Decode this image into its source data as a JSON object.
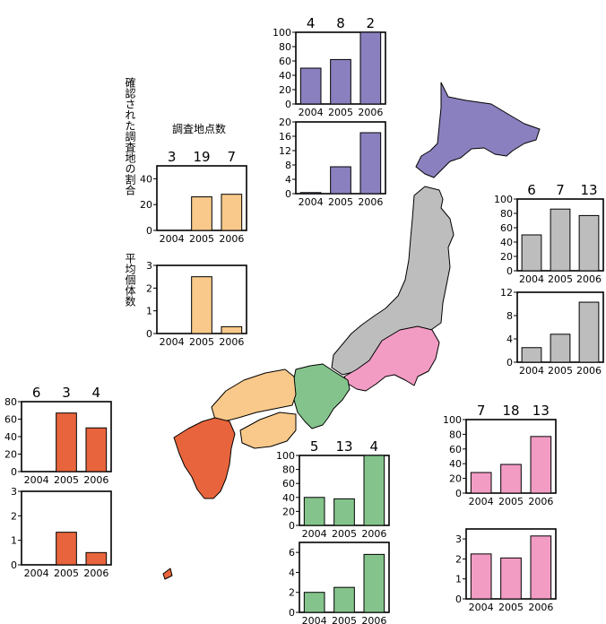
{
  "legend_labels": {
    "survey_points_title": "調査地点数",
    "proportion_label": "確認された調査地の割合",
    "avg_label": "平均個体数"
  },
  "colors": {
    "hokkaido": "#8b80bf",
    "tohoku": "#bdbdbd",
    "kanto": "#f29cc4",
    "chubu_kinki": "#84c48c",
    "chugoku_shikoku": "#f8c98a",
    "kyushu": "#e8643c"
  },
  "chart_data": [
    {
      "id": "legend-prop",
      "type": "bar",
      "categories": [
        "2004",
        "2005",
        "2006"
      ],
      "values": [
        0,
        26,
        28
      ],
      "counts": [
        "3",
        "19",
        "7"
      ],
      "ylim": [
        0,
        50
      ],
      "yticks": [
        "0",
        "20",
        "40"
      ],
      "color": "#f8c98a"
    },
    {
      "id": "legend-avg",
      "type": "bar",
      "categories": [
        "2004",
        "2005",
        "2006"
      ],
      "values": [
        0,
        2.5,
        0.3
      ],
      "ylim": [
        0,
        3
      ],
      "yticks": [
        "0",
        "1",
        "2",
        "3"
      ],
      "color": "#f8c98a"
    },
    {
      "id": "hokkaido-prop",
      "type": "bar",
      "categories": [
        "2004",
        "2005",
        "2006"
      ],
      "values": [
        50,
        62,
        100
      ],
      "counts": [
        "4",
        "8",
        "2"
      ],
      "ylim": [
        0,
        100
      ],
      "yticks": [
        "0",
        "20",
        "40",
        "60",
        "80",
        "100"
      ],
      "color": "#8b80bf"
    },
    {
      "id": "hokkaido-avg",
      "type": "bar",
      "categories": [
        "2004",
        "2005",
        "2006"
      ],
      "values": [
        0.3,
        7.5,
        17
      ],
      "ylim": [
        0,
        20
      ],
      "yticks": [
        "0",
        "4",
        "8",
        "12",
        "16",
        "20"
      ],
      "color": "#8b80bf"
    },
    {
      "id": "tohoku-prop",
      "type": "bar",
      "categories": [
        "2004",
        "2005",
        "2006"
      ],
      "values": [
        50,
        86,
        77
      ],
      "counts": [
        "6",
        "7",
        "13"
      ],
      "ylim": [
        0,
        100
      ],
      "yticks": [
        "0",
        "20",
        "40",
        "60",
        "80",
        "100"
      ],
      "color": "#bdbdbd"
    },
    {
      "id": "tohoku-avg",
      "type": "bar",
      "categories": [
        "2004",
        "2005",
        "2006"
      ],
      "values": [
        2.5,
        4.8,
        10.3
      ],
      "ylim": [
        0,
        12
      ],
      "yticks": [
        "0",
        "4",
        "8",
        "12"
      ],
      "color": "#bdbdbd"
    },
    {
      "id": "kyushu-prop",
      "type": "bar",
      "categories": [
        "2004",
        "2005",
        "2006"
      ],
      "values": [
        0,
        67,
        50
      ],
      "counts": [
        "6",
        "3",
        "4"
      ],
      "ylim": [
        0,
        80
      ],
      "yticks": [
        "0",
        "20",
        "40",
        "60",
        "80"
      ],
      "color": "#e8643c"
    },
    {
      "id": "kyushu-avg",
      "type": "bar",
      "categories": [
        "2004",
        "2005",
        "2006"
      ],
      "values": [
        0,
        1.33,
        0.5
      ],
      "ylim": [
        0,
        3
      ],
      "yticks": [
        "0",
        "1",
        "2",
        "3"
      ],
      "color": "#e8643c"
    },
    {
      "id": "kinki-prop",
      "type": "bar",
      "categories": [
        "2004",
        "2005",
        "2006"
      ],
      "values": [
        40,
        38,
        100
      ],
      "counts": [
        "5",
        "13",
        "4"
      ],
      "ylim": [
        0,
        100
      ],
      "yticks": [
        "0",
        "20",
        "40",
        "60",
        "80",
        "100"
      ],
      "color": "#84c48c"
    },
    {
      "id": "kinki-avg",
      "type": "bar",
      "categories": [
        "2004",
        "2005",
        "2006"
      ],
      "values": [
        2,
        2.5,
        5.8
      ],
      "ylim": [
        0,
        7
      ],
      "yticks": [
        "0",
        "2",
        "4",
        "6"
      ],
      "color": "#84c48c"
    },
    {
      "id": "kanto-prop",
      "type": "bar",
      "categories": [
        "2004",
        "2005",
        "2006"
      ],
      "values": [
        28,
        39,
        77
      ],
      "counts": [
        "7",
        "18",
        "13"
      ],
      "ylim": [
        0,
        100
      ],
      "yticks": [
        "0",
        "20",
        "40",
        "60",
        "80",
        "100"
      ],
      "color": "#f29cc4"
    },
    {
      "id": "kanto-avg",
      "type": "bar",
      "categories": [
        "2004",
        "2005",
        "2006"
      ],
      "values": [
        2.25,
        2.05,
        3.15
      ],
      "ylim": [
        0,
        3.5
      ],
      "yticks": [
        "0",
        "1",
        "2",
        "3"
      ],
      "color": "#f29cc4"
    }
  ]
}
